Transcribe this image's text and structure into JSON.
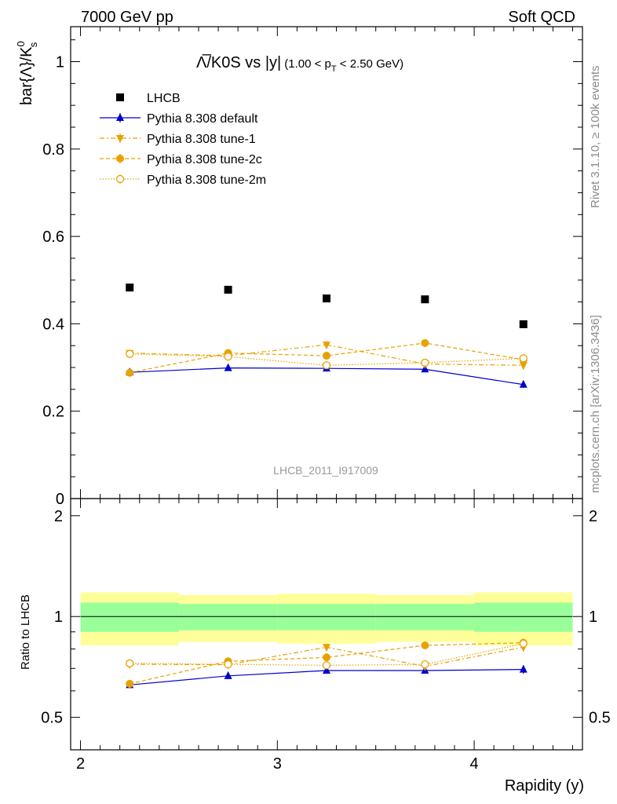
{
  "header": {
    "left": "7000 GeV pp",
    "right": "Soft QCD"
  },
  "side_labels": {
    "rivet": "Rivet 3.1.10, ≥ 100k events",
    "mcplots": "mcplots.cern.ch [arXiv:1306.3436]"
  },
  "watermark": "LHCB_2011_I917009",
  "chart_data": {
    "type": "scatter",
    "title_main": "Λ̅/K0S vs |y|",
    "title_cut": "(1.00 < p",
    "title_cut_sub": "T",
    "title_cut_end": " < 2.50 GeV)",
    "ylabel_main": "bar{Λ}/K",
    "ylabel_sup": "0",
    "ylabel_sub": "s",
    "ylabel_ratio": "Ratio to LHCB",
    "xlabel": "Rapidity (y)",
    "xlim": [
      1.95,
      4.55
    ],
    "ylim": [
      0,
      1.08
    ],
    "ylim_ratio": [
      0.4,
      2.25
    ],
    "x_ticks": [
      "2",
      "3",
      "4"
    ],
    "y_ticks": [
      "0",
      "0.2",
      "0.4",
      "0.6",
      "0.8",
      "1"
    ],
    "ratio_ticks": [
      "0.5",
      "1",
      "2"
    ],
    "x": [
      2.25,
      2.75,
      3.25,
      3.75,
      4.25
    ],
    "bin_edges": [
      2.0,
      2.5,
      3.0,
      3.5,
      4.0,
      4.5
    ],
    "band_inner": [
      0.1,
      0.09,
      0.09,
      0.09,
      0.1
    ],
    "band_outer": [
      0.18,
      0.16,
      0.17,
      0.16,
      0.18
    ],
    "legend": {
      "LHCB": "LHCB",
      "default": "Pythia 8.308 default",
      "tune1": "Pythia 8.308 tune-1",
      "tune2c": "Pythia 8.308 tune-2c",
      "tune2m": "Pythia 8.308 tune-2m"
    },
    "series": [
      {
        "name": "LHCB",
        "key": "LHCB",
        "values": [
          0.483,
          0.478,
          0.458,
          0.456,
          0.399
        ],
        "errors": [
          0.0,
          0.0,
          0.0,
          0.0,
          0.0
        ],
        "color": "#000000",
        "marker": "square",
        "dash": "none"
      },
      {
        "name": "Pythia 8.308 default",
        "key": "default",
        "values": [
          0.289,
          0.299,
          0.298,
          0.296,
          0.261
        ],
        "errors": [
          0.005,
          0.006,
          0.006,
          0.006,
          0.008
        ],
        "color": "#0000cc",
        "marker": "triangle-up",
        "dash": "none"
      },
      {
        "name": "Pythia 8.308 tune-1",
        "key": "tune1",
        "values": [
          0.333,
          0.327,
          0.352,
          0.308,
          0.305
        ],
        "errors": [
          0.008,
          0.008,
          0.009,
          0.008,
          0.01
        ],
        "color": "#e8a200",
        "marker": "triangle-down",
        "dash": "6,3,2,3"
      },
      {
        "name": "Pythia 8.308 tune-2c",
        "key": "tune2c",
        "values": [
          0.288,
          0.333,
          0.327,
          0.356,
          0.318
        ],
        "errors": [
          0.008,
          0.009,
          0.009,
          0.009,
          0.01
        ],
        "color": "#e8a200",
        "marker": "circle",
        "dash": "5,3"
      },
      {
        "name": "Pythia 8.308 tune-2m",
        "key": "tune2m",
        "values": [
          0.331,
          0.325,
          0.305,
          0.311,
          0.321
        ],
        "errors": [
          0.008,
          0.008,
          0.008,
          0.008,
          0.01
        ],
        "color": "#e8a200",
        "marker": "circle-open",
        "dash": "1.5,2"
      }
    ],
    "ratio_series": [
      {
        "key": "default",
        "values": [
          0.625,
          0.665,
          0.69,
          0.69,
          0.695
        ]
      },
      {
        "key": "tune1",
        "values": [
          0.72,
          0.718,
          0.81,
          0.71,
          0.81
        ]
      },
      {
        "key": "tune2c",
        "values": [
          0.63,
          0.735,
          0.755,
          0.82,
          0.835
        ]
      },
      {
        "key": "tune2m",
        "values": [
          0.725,
          0.72,
          0.715,
          0.72,
          0.83
        ]
      }
    ]
  }
}
